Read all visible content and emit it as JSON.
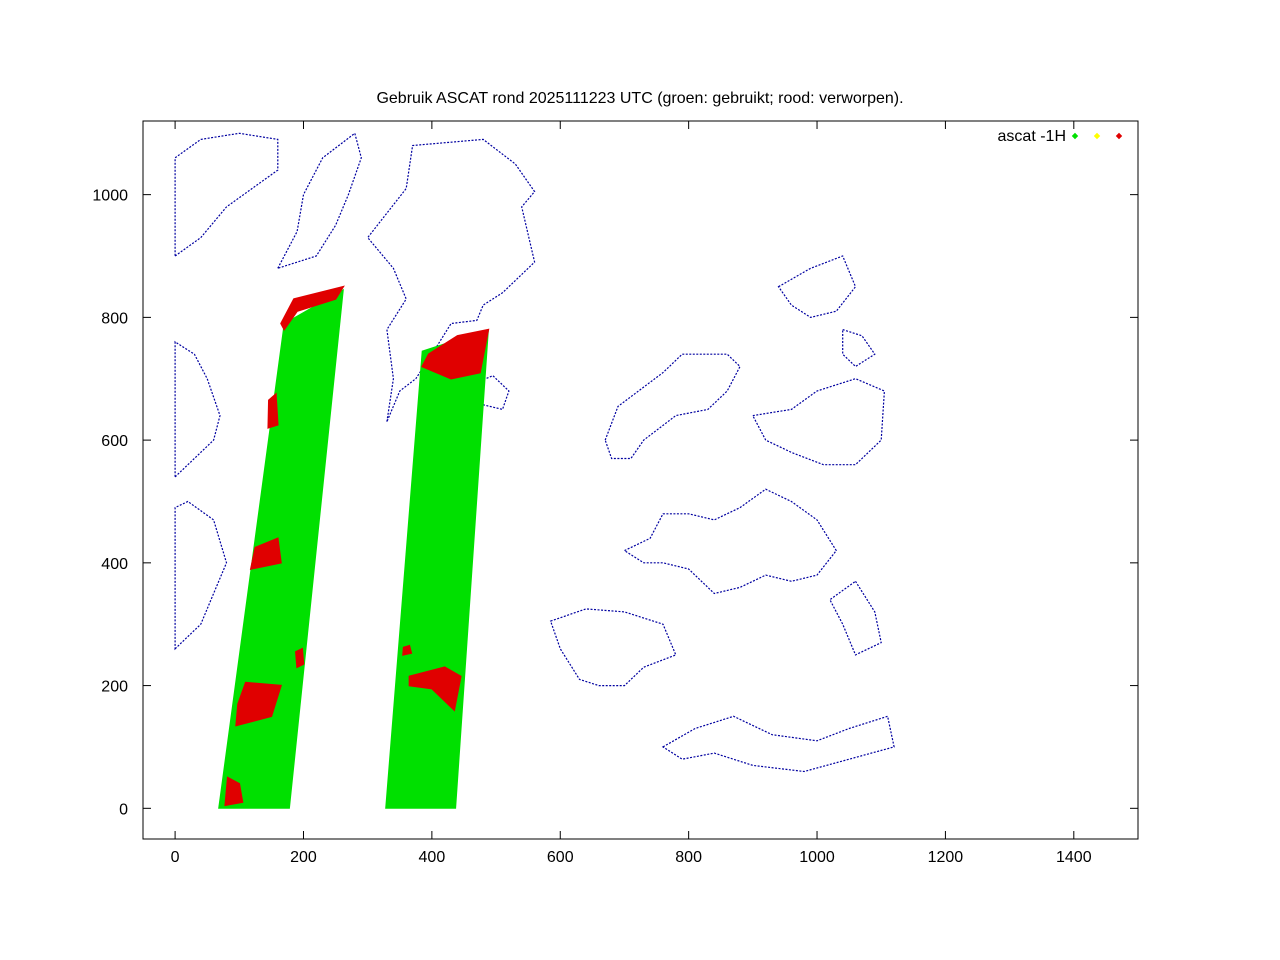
{
  "chart_data": {
    "type": "scatter",
    "title": "Gebruik ASCAT rond 2025111223 UTC (groen: gebruikt; rood: verworpen).",
    "xlabel": "",
    "ylabel": "",
    "xlim": [
      -50,
      1500
    ],
    "ylim": [
      -50,
      1120
    ],
    "xticks": [
      0,
      200,
      400,
      600,
      800,
      1000,
      1200,
      1400
    ],
    "yticks": [
      0,
      200,
      400,
      600,
      800,
      1000
    ],
    "grid": false,
    "legend_position": "top-right",
    "legend": {
      "label": "ascat -1H",
      "colors": [
        "#00e000",
        "#ffff00",
        "#e00000"
      ]
    },
    "colors": {
      "coastline": "#0000a0",
      "used": "#00e000",
      "rejected": "#e00000",
      "frame": "#000000"
    },
    "swaths": [
      {
        "name": "",
        "used_polygon": [
          [
            68,
            0
          ],
          [
            178,
            0
          ],
          [
            262,
            845
          ],
          [
            170,
            790
          ]
        ],
        "rejected_patches": [
          {
            "polygon": [
              [
                78,
                5
              ],
              [
                105,
                10
              ],
              [
                100,
                40
              ],
              [
                82,
                50
              ]
            ]
          },
          {
            "polygon": [
              [
                95,
                135
              ],
              [
                150,
                150
              ],
              [
                165,
                200
              ],
              [
                110,
                205
              ],
              [
                98,
                170
              ]
            ]
          },
          {
            "polygon": [
              [
                190,
                230
              ],
              [
                200,
                235
              ],
              [
                198,
                260
              ],
              [
                188,
                255
              ]
            ]
          },
          {
            "polygon": [
              [
                118,
                390
              ],
              [
                165,
                400
              ],
              [
                160,
                440
              ],
              [
                125,
                425
              ]
            ]
          },
          {
            "polygon": [
              [
                145,
                620
              ],
              [
                160,
                625
              ],
              [
                157,
                675
              ],
              [
                146,
                665
              ]
            ]
          },
          {
            "polygon": [
              [
                165,
                790
              ],
              [
                185,
                830
              ],
              [
                262,
                850
              ],
              [
                250,
                830
              ],
              [
                190,
                810
              ],
              [
                170,
                780
              ]
            ]
          }
        ]
      },
      {
        "name": "",
        "used_polygon": [
          [
            328,
            0
          ],
          [
            437,
            0
          ],
          [
            488,
            780
          ],
          [
            385,
            745
          ]
        ],
        "rejected_patches": [
          {
            "polygon": [
              [
                365,
                215
              ],
              [
                420,
                230
              ],
              [
                445,
                215
              ],
              [
                435,
                160
              ],
              [
                400,
                195
              ],
              [
                365,
                200
              ]
            ]
          },
          {
            "polygon": [
              [
                355,
                250
              ],
              [
                368,
                253
              ],
              [
                365,
                265
              ],
              [
                356,
                262
              ]
            ]
          },
          {
            "polygon": [
              [
                385,
                720
              ],
              [
                430,
                700
              ],
              [
                475,
                710
              ],
              [
                488,
                780
              ],
              [
                440,
                770
              ],
              [
                395,
                740
              ]
            ]
          }
        ]
      }
    ],
    "coastline_polygons": [
      [
        [
          330,
          630
        ],
        [
          340,
          700
        ],
        [
          330,
          780
        ],
        [
          360,
          830
        ],
        [
          340,
          880
        ],
        [
          300,
          930
        ],
        [
          360,
          1010
        ],
        [
          370,
          1080
        ],
        [
          480,
          1090
        ],
        [
          530,
          1050
        ],
        [
          560,
          1005
        ],
        [
          540,
          980
        ],
        [
          560,
          890
        ],
        [
          510,
          840
        ],
        [
          480,
          820
        ],
        [
          470,
          795
        ],
        [
          430,
          790
        ],
        [
          400,
          740
        ],
        [
          375,
          700
        ],
        [
          350,
          680
        ]
      ],
      [
        [
          670,
          600
        ],
        [
          690,
          655
        ],
        [
          760,
          710
        ],
        [
          790,
          740
        ],
        [
          820,
          740
        ],
        [
          860,
          740
        ],
        [
          880,
          720
        ],
        [
          860,
          680
        ],
        [
          830,
          650
        ],
        [
          780,
          640
        ],
        [
          730,
          600
        ],
        [
          710,
          570
        ],
        [
          680,
          570
        ]
      ],
      [
        [
          585,
          305
        ],
        [
          640,
          325
        ],
        [
          700,
          320
        ],
        [
          760,
          300
        ],
        [
          780,
          250
        ],
        [
          730,
          230
        ],
        [
          700,
          200
        ],
        [
          660,
          200
        ],
        [
          630,
          210
        ],
        [
          600,
          260
        ]
      ],
      [
        [
          700,
          420
        ],
        [
          740,
          440
        ],
        [
          760,
          480
        ],
        [
          800,
          480
        ],
        [
          840,
          470
        ],
        [
          880,
          490
        ],
        [
          920,
          520
        ],
        [
          960,
          500
        ],
        [
          1000,
          470
        ],
        [
          1030,
          420
        ],
        [
          1000,
          380
        ],
        [
          960,
          370
        ],
        [
          920,
          380
        ],
        [
          880,
          360
        ],
        [
          840,
          350
        ],
        [
          800,
          390
        ],
        [
          760,
          400
        ],
        [
          730,
          400
        ]
      ],
      [
        [
          760,
          100
        ],
        [
          810,
          130
        ],
        [
          870,
          150
        ],
        [
          930,
          120
        ],
        [
          1000,
          110
        ],
        [
          1050,
          130
        ],
        [
          1110,
          150
        ],
        [
          1120,
          100
        ],
        [
          1050,
          80
        ],
        [
          980,
          60
        ],
        [
          900,
          70
        ],
        [
          840,
          90
        ],
        [
          790,
          80
        ]
      ],
      [
        [
          1060,
          370
        ],
        [
          1090,
          320
        ],
        [
          1100,
          270
        ],
        [
          1060,
          250
        ],
        [
          1040,
          300
        ],
        [
          1020,
          340
        ]
      ],
      [
        [
          900,
          640
        ],
        [
          960,
          650
        ],
        [
          1000,
          680
        ],
        [
          1060,
          700
        ],
        [
          1105,
          680
        ],
        [
          1100,
          600
        ],
        [
          1060,
          560
        ],
        [
          1010,
          560
        ],
        [
          960,
          580
        ],
        [
          920,
          600
        ]
      ],
      [
        [
          1040,
          780
        ],
        [
          1070,
          770
        ],
        [
          1090,
          740
        ],
        [
          1060,
          720
        ],
        [
          1040,
          740
        ]
      ],
      [
        [
          940,
          850
        ],
        [
          990,
          880
        ],
        [
          1040,
          900
        ],
        [
          1060,
          850
        ],
        [
          1030,
          810
        ],
        [
          990,
          800
        ],
        [
          960,
          820
        ]
      ],
      [
        [
          460,
          690
        ],
        [
          495,
          705
        ],
        [
          520,
          680
        ],
        [
          510,
          650
        ],
        [
          470,
          660
        ]
      ],
      [
        [
          0,
          540
        ],
        [
          20,
          560
        ],
        [
          60,
          600
        ],
        [
          70,
          640
        ],
        [
          50,
          700
        ],
        [
          30,
          740
        ],
        [
          0,
          760
        ]
      ],
      [
        [
          0,
          900
        ],
        [
          40,
          930
        ],
        [
          80,
          980
        ],
        [
          120,
          1010
        ],
        [
          160,
          1040
        ],
        [
          160,
          1090
        ],
        [
          100,
          1100
        ],
        [
          40,
          1090
        ],
        [
          0,
          1060
        ]
      ],
      [
        [
          160,
          880
        ],
        [
          190,
          940
        ],
        [
          200,
          1000
        ],
        [
          230,
          1060
        ],
        [
          280,
          1100
        ],
        [
          290,
          1060
        ],
        [
          270,
          1000
        ],
        [
          250,
          950
        ],
        [
          220,
          900
        ]
      ],
      [
        [
          0,
          260
        ],
        [
          40,
          300
        ],
        [
          60,
          350
        ],
        [
          80,
          400
        ],
        [
          60,
          470
        ],
        [
          20,
          500
        ],
        [
          0,
          490
        ]
      ]
    ]
  }
}
